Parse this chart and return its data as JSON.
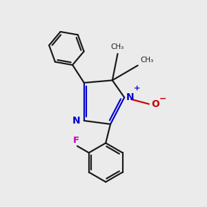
{
  "bg_color": "#ebebeb",
  "bond_color": "#1a1a1a",
  "N_color": "#0000cc",
  "O_color": "#cc0000",
  "F_color": "#bb00bb",
  "lw": 1.6,
  "figsize": [
    3.0,
    3.0
  ],
  "dpi": 100,
  "xlim": [
    -1.6,
    2.8
  ],
  "ylim": [
    -3.2,
    2.6
  ]
}
